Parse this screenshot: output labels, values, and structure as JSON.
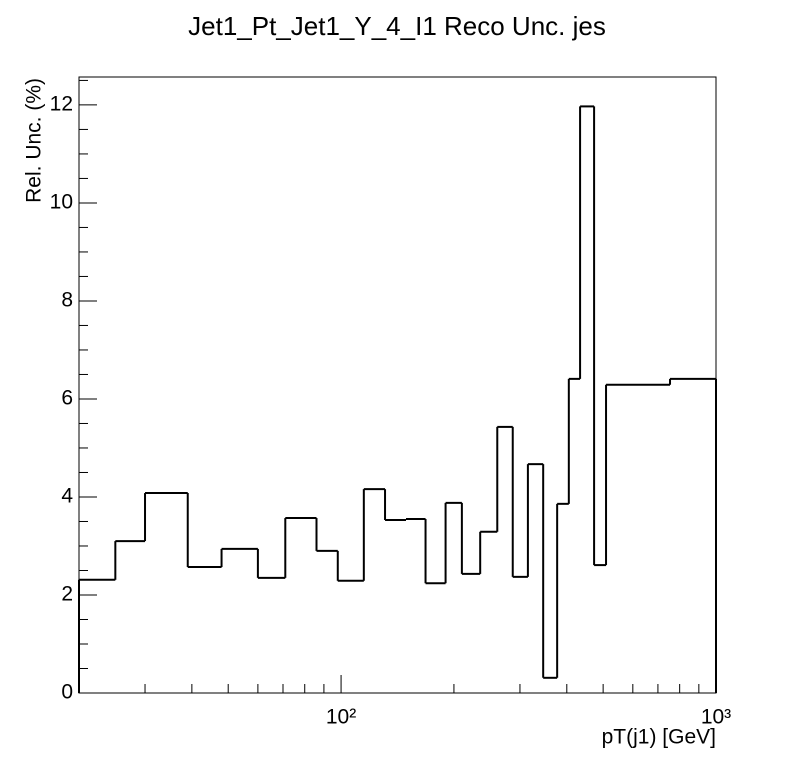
{
  "chart_data": {
    "type": "histogram",
    "title": "Jet1_Pt_Jet1_Y_4_I1 Reco Unc. jes",
    "x_label": "pT(j1) [GeV]",
    "y_label": "Rel. Unc. (%)",
    "x_log": true,
    "bins": [
      20,
      25,
      30,
      39,
      48,
      60,
      71,
      86,
      98,
      115,
      131,
      149,
      168,
      190,
      210,
      235,
      261,
      287,
      315,
      346,
      377,
      405,
      434,
      473,
      509,
      754,
      1000
    ],
    "values": [
      2.31,
      3.1,
      4.08,
      2.57,
      2.94,
      2.35,
      3.57,
      2.9,
      2.29,
      4.16,
      3.53,
      3.55,
      2.24,
      3.88,
      2.43,
      3.29,
      5.43,
      2.37,
      4.67,
      0.31,
      3.86,
      6.41,
      11.97,
      2.61,
      6.29,
      6.41
    ],
    "color": "#000000",
    "xlim": [
      20,
      1000
    ],
    "xticks": [
      {
        "value": 100,
        "label": "10²"
      },
      {
        "value": 1000,
        "label": "10³"
      }
    ],
    "xminor": [
      20,
      30,
      40,
      50,
      60,
      70,
      80,
      90,
      200,
      300,
      400,
      500,
      600,
      700,
      800,
      900
    ],
    "ylim": [
      0,
      12.57
    ],
    "yticks": [
      0,
      2,
      4,
      6,
      8,
      10,
      12
    ],
    "yminor": [
      0.5,
      1,
      1.5,
      2.5,
      3,
      3.5,
      4.5,
      5,
      5.5,
      6.5,
      7,
      7.5,
      8.5,
      9,
      9.5,
      10.5,
      11,
      11.5,
      12.5
    ]
  }
}
